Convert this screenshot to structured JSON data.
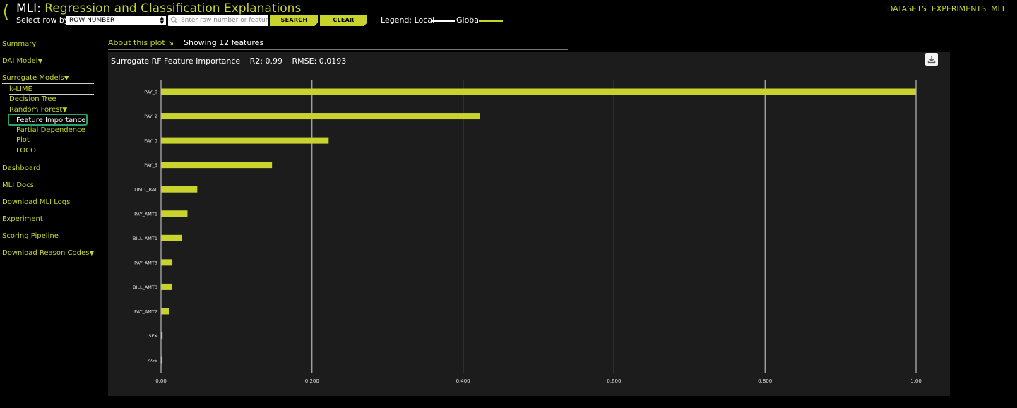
{
  "header": {
    "title_prefix": "MLI:",
    "title_main": "Regression and Classification Explanations",
    "select_label": "Select row by:",
    "select_value": "ROW NUMBER",
    "input_placeholder": "Enter row number or feature",
    "search_label": "SEARCH",
    "clear_label": "CLEAR",
    "legend_label": "Legend: Local",
    "legend_global": "Global"
  },
  "top_nav": [
    "DATASETS",
    "EXPERIMENTS",
    "MLI"
  ],
  "sidebar": {
    "summary": "Summary",
    "dai_model": "DAI Model",
    "surrogate_models": "Surrogate Models",
    "klime": "k-LIME",
    "decision_tree": "Decision Tree",
    "random_forest": "Random Forest",
    "feature_importance": "Feature Importance",
    "partial_dependence": "Partial Dependence",
    "plot": "Plot",
    "loco": "LOCO",
    "dashboard": "Dashboard",
    "mli_docs": "MLI Docs",
    "download_logs": "Download MLI Logs",
    "experiment": "Experiment",
    "scoring_pipeline": "Scoring Pipeline",
    "download_reason_codes": "Download Reason Codes"
  },
  "about": {
    "link": "About this plot",
    "showing": "Showing 12 features"
  },
  "chart_header": {
    "title": "Surrogate RF Feature Importance",
    "r2": "R2: 0.99",
    "rmse": "RMSE: 0.0193"
  },
  "colors": {
    "accent": "#c8d42d",
    "panel": "#1c1c1c",
    "highlight": "#2aa36a"
  },
  "icons": {
    "back": "chevron-left-icon",
    "search": "search-icon",
    "download": "download-icon"
  },
  "chart_data": {
    "type": "bar",
    "orientation": "horizontal",
    "categories": [
      "PAY_0",
      "PAY_2",
      "PAY_3",
      "PAY_5",
      "LIMIT_BAL",
      "PAY_AMT1",
      "BILL_AMT1",
      "PAY_AMT3",
      "BILL_AMT3",
      "PAY_AMT2",
      "SEX",
      "AGE"
    ],
    "values": [
      1.0,
      0.422,
      0.222,
      0.147,
      0.048,
      0.035,
      0.028,
      0.015,
      0.014,
      0.011,
      0.002,
      0.001
    ],
    "xlim": [
      0,
      1.0
    ],
    "xticks": [
      0,
      0.2,
      0.4,
      0.6,
      0.8,
      1.0
    ],
    "xtick_labels": [
      "0.00",
      "0.200",
      "0.400",
      "0.600",
      "0.800",
      "1.00"
    ],
    "grid": true
  }
}
